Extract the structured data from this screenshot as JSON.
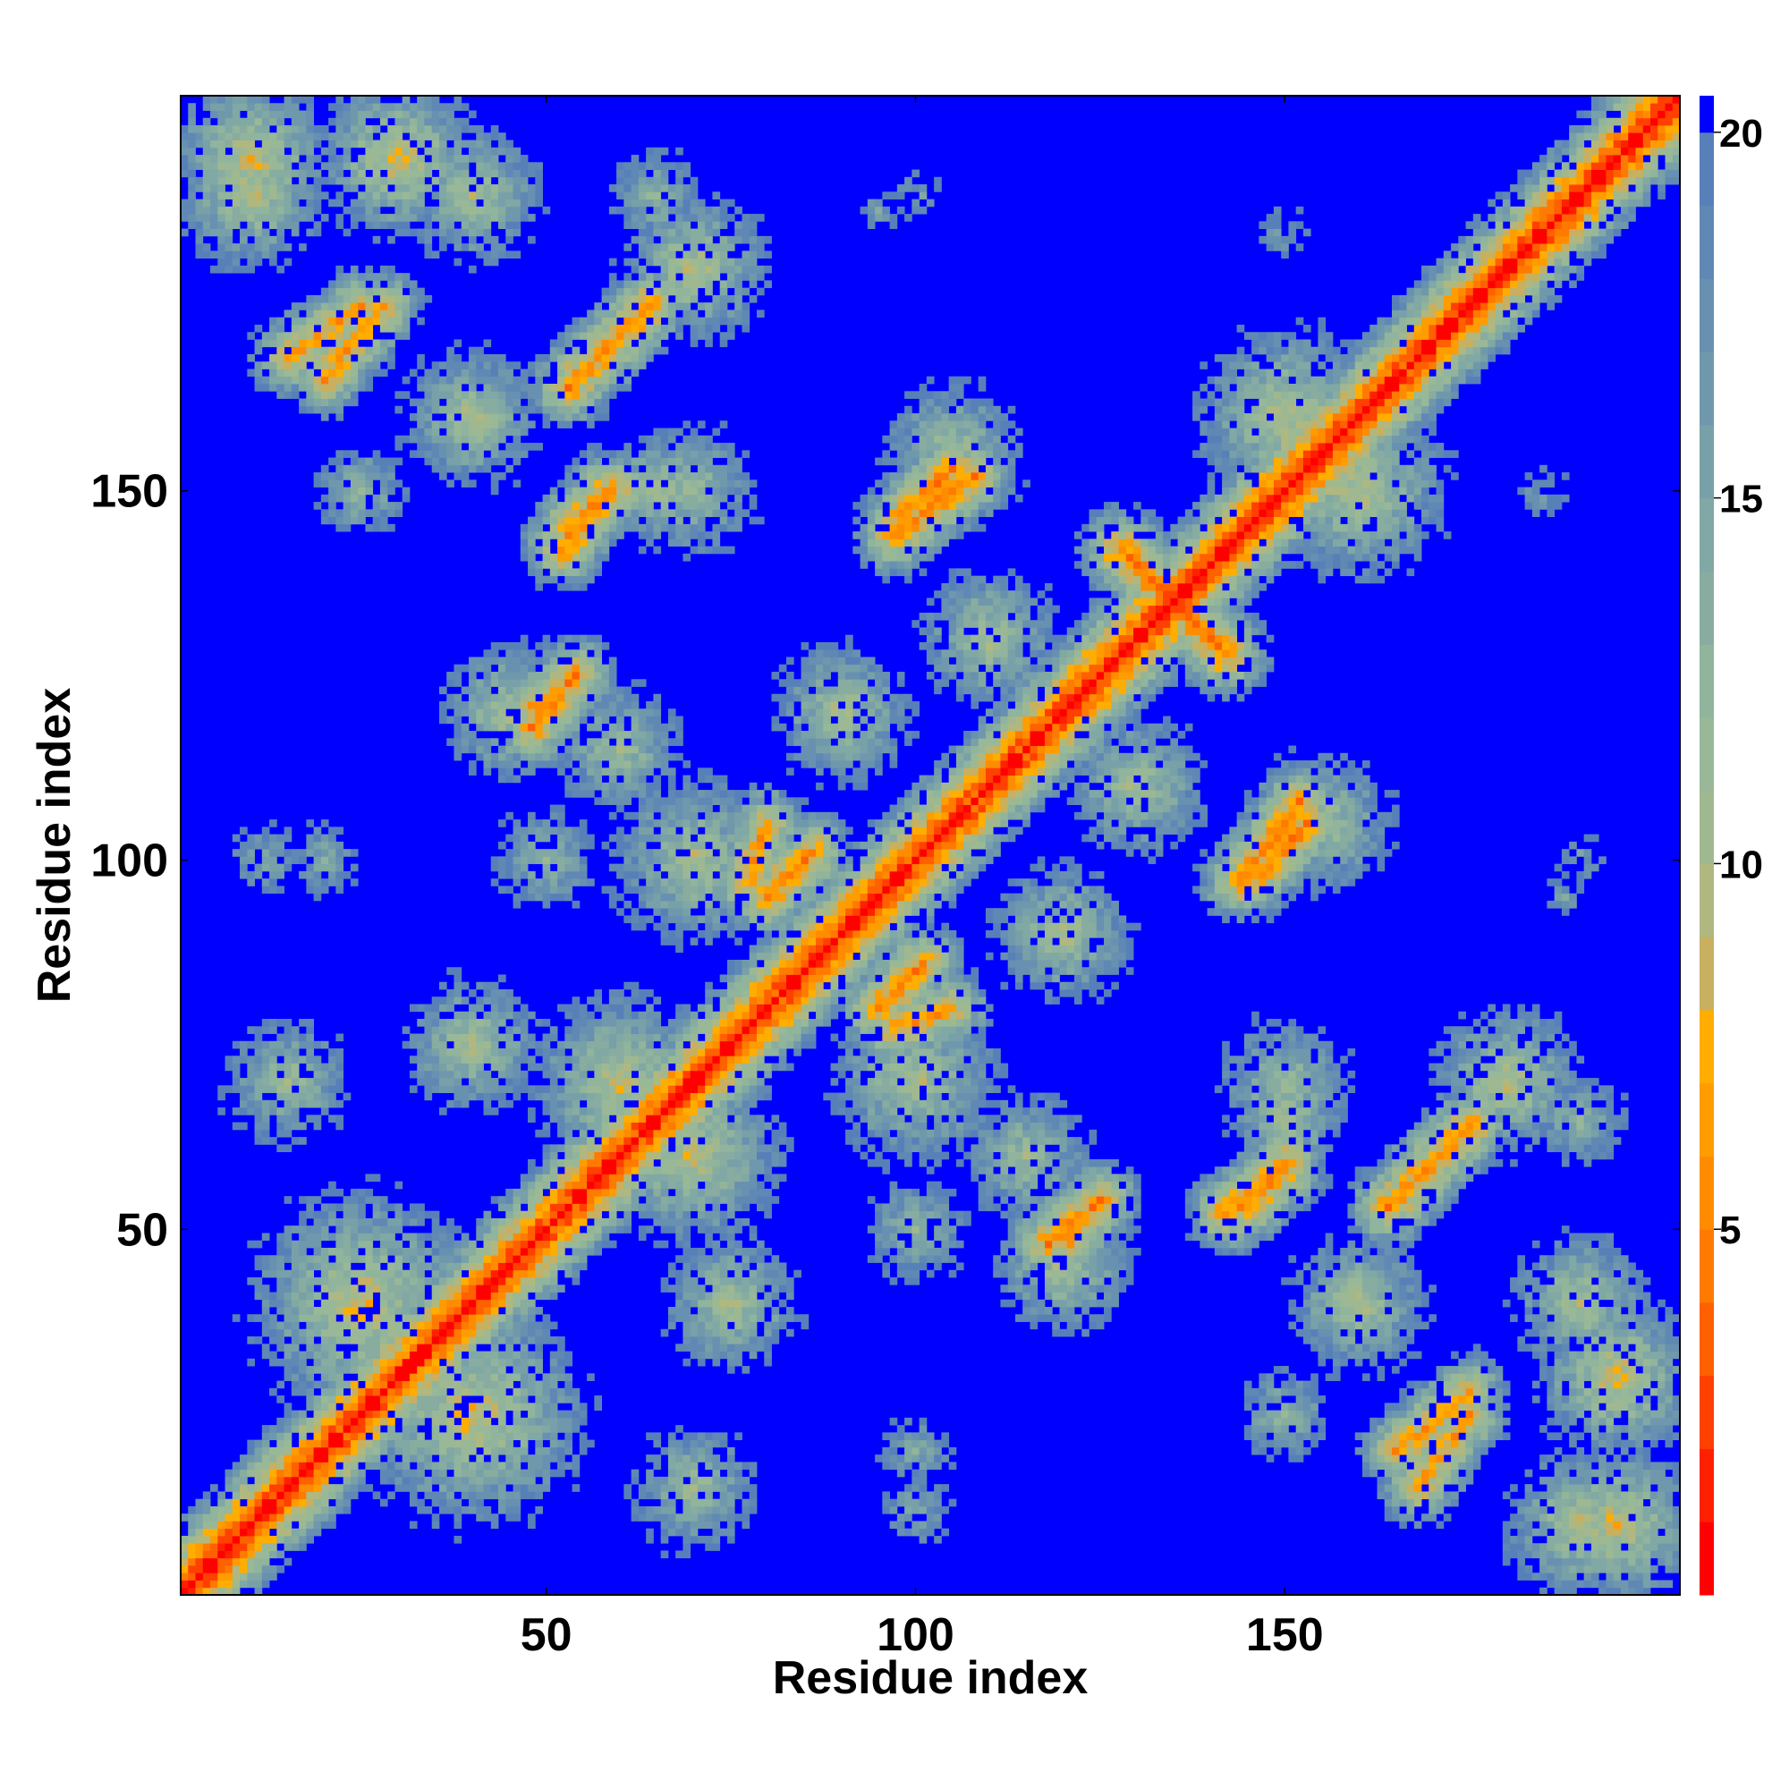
{
  "chart_data": {
    "type": "heatmap",
    "title": "",
    "xlabel": "Residue index",
    "ylabel": "Residue index",
    "n_residues": 203,
    "xlim": [
      1,
      203
    ],
    "ylim": [
      1,
      203
    ],
    "xticks": [
      50,
      100,
      150
    ],
    "xtick_labels": [
      "50",
      "100",
      "150"
    ],
    "yticks": [
      50,
      100,
      150
    ],
    "ytick_labels": [
      "50",
      "100",
      "150"
    ],
    "colorbar": {
      "range": [
        0,
        20.5
      ],
      "ticks": [
        5,
        10,
        15,
        20
      ],
      "tick_labels": [
        "5",
        "10",
        "15",
        "20"
      ],
      "bands": [
        {
          "min": 0.0,
          "max": 1.0,
          "color": "#ff0000"
        },
        {
          "min": 1.0,
          "max": 2.0,
          "color": "#ff2000"
        },
        {
          "min": 2.0,
          "max": 3.0,
          "color": "#ff4000"
        },
        {
          "min": 3.0,
          "max": 4.0,
          "color": "#ff6000"
        },
        {
          "min": 4.0,
          "max": 5.0,
          "color": "#ff7a00"
        },
        {
          "min": 5.0,
          "max": 6.0,
          "color": "#ff8c00"
        },
        {
          "min": 6.0,
          "max": 7.0,
          "color": "#ff9c00"
        },
        {
          "min": 7.0,
          "max": 8.0,
          "color": "#ffad00"
        },
        {
          "min": 8.0,
          "max": 9.0,
          "color": "#c8b060"
        },
        {
          "min": 9.0,
          "max": 10.0,
          "color": "#b0b880"
        },
        {
          "min": 10.0,
          "max": 11.0,
          "color": "#a0b890"
        },
        {
          "min": 11.0,
          "max": 12.0,
          "color": "#98b898"
        },
        {
          "min": 12.0,
          "max": 13.0,
          "color": "#90b49c"
        },
        {
          "min": 13.0,
          "max": 14.0,
          "color": "#88aca0"
        },
        {
          "min": 14.0,
          "max": 15.0,
          "color": "#80a8a4"
        },
        {
          "min": 15.0,
          "max": 16.0,
          "color": "#78a0a8"
        },
        {
          "min": 16.0,
          "max": 17.0,
          "color": "#7098ac"
        },
        {
          "min": 17.0,
          "max": 18.0,
          "color": "#6890b0"
        },
        {
          "min": 18.0,
          "max": 19.0,
          "color": "#6088b4"
        },
        {
          "min": 19.0,
          "max": 20.0,
          "color": "#5880b8"
        },
        {
          "min": 20.0,
          "max": 20.5,
          "color": "#0000ff"
        }
      ]
    },
    "description_values": {
      "background_color": "#0000ff",
      "diagonal_color": "#ff0000"
    },
    "contact_bands": [
      {
        "i1": 1,
        "j1": 1,
        "i2": 203,
        "j2": 203,
        "width": 4,
        "min_dist": 0.5
      },
      {
        "i1": 128,
        "j1": 142,
        "i2": 142,
        "j2": 128,
        "width": 2,
        "min_dist": 4
      },
      {
        "i1": 164,
        "j1": 53,
        "i2": 175,
        "j2": 64,
        "width": 2,
        "min_dist": 5
      },
      {
        "i1": 146,
        "j1": 98,
        "i2": 153,
        "j2": 105,
        "width": 2,
        "min_dist": 5
      },
      {
        "i1": 145,
        "j1": 53,
        "i2": 150,
        "j2": 59,
        "width": 2,
        "min_dist": 5
      },
      {
        "i1": 54,
        "j1": 165,
        "i2": 60,
        "j2": 171,
        "width": 2,
        "min_dist": 5
      },
      {
        "i1": 52,
        "j1": 142,
        "i2": 58,
        "j2": 150,
        "width": 2,
        "min_dist": 5
      },
      {
        "i1": 95,
        "j1": 80,
        "i2": 101,
        "j2": 86,
        "width": 2,
        "min_dist": 5
      },
      {
        "i1": 97,
        "j1": 144,
        "i2": 108,
        "j2": 152,
        "width": 2,
        "min_dist": 5
      },
      {
        "i1": 48,
        "j1": 118,
        "i2": 54,
        "j2": 125,
        "width": 2,
        "min_dist": 5
      },
      {
        "i1": 77,
        "j1": 97,
        "i2": 80,
        "j2": 105,
        "width": 2,
        "min_dist": 6
      },
      {
        "i1": 121,
        "j1": 48,
        "i2": 124,
        "j2": 54,
        "width": 2,
        "min_dist": 6
      },
      {
        "i1": 165,
        "j1": 20,
        "i2": 175,
        "j2": 28,
        "width": 2,
        "min_dist": 6
      },
      {
        "i1": 15,
        "j1": 168,
        "i2": 25,
        "j2": 175,
        "width": 2,
        "min_dist": 6
      }
    ],
    "contact_blobs": [
      {
        "i": 10,
        "j": 190,
        "r": 10,
        "min_dist": 9
      },
      {
        "i": 40,
        "j": 190,
        "r": 10,
        "min_dist": 10
      },
      {
        "i": 65,
        "j": 190,
        "r": 8,
        "min_dist": 12
      },
      {
        "i": 95,
        "j": 188,
        "r": 5,
        "min_dist": 15
      },
      {
        "i": 25,
        "j": 150,
        "r": 8,
        "min_dist": 12
      },
      {
        "i": 70,
        "j": 150,
        "r": 10,
        "min_dist": 11
      },
      {
        "i": 105,
        "j": 155,
        "r": 10,
        "min_dist": 10
      },
      {
        "i": 150,
        "j": 160,
        "r": 12,
        "min_dist": 9
      },
      {
        "i": 185,
        "j": 150,
        "r": 6,
        "min_dist": 15
      },
      {
        "i": 60,
        "j": 115,
        "r": 10,
        "min_dist": 11
      },
      {
        "i": 90,
        "j": 120,
        "r": 10,
        "min_dist": 10
      },
      {
        "i": 130,
        "j": 110,
        "r": 10,
        "min_dist": 10
      },
      {
        "i": 20,
        "j": 100,
        "r": 8,
        "min_dist": 14
      },
      {
        "i": 50,
        "j": 100,
        "r": 9,
        "min_dist": 12
      },
      {
        "i": 190,
        "j": 100,
        "r": 6,
        "min_dist": 15
      },
      {
        "i": 60,
        "j": 70,
        "r": 12,
        "min_dist": 9
      },
      {
        "i": 100,
        "j": 70,
        "r": 12,
        "min_dist": 10
      },
      {
        "i": 150,
        "j": 65,
        "r": 8,
        "min_dist": 10
      },
      {
        "i": 180,
        "j": 70,
        "r": 10,
        "min_dist": 9
      },
      {
        "i": 25,
        "j": 40,
        "r": 14,
        "min_dist": 8
      },
      {
        "i": 75,
        "j": 40,
        "r": 10,
        "min_dist": 10
      },
      {
        "i": 120,
        "j": 45,
        "r": 10,
        "min_dist": 10
      },
      {
        "i": 160,
        "j": 40,
        "r": 10,
        "min_dist": 10
      },
      {
        "i": 195,
        "j": 30,
        "r": 10,
        "min_dist": 8
      },
      {
        "i": 195,
        "j": 10,
        "r": 10,
        "min_dist": 8
      },
      {
        "i": 70,
        "j": 15,
        "r": 10,
        "min_dist": 11
      },
      {
        "i": 100,
        "j": 12,
        "r": 8,
        "min_dist": 14
      }
    ]
  }
}
